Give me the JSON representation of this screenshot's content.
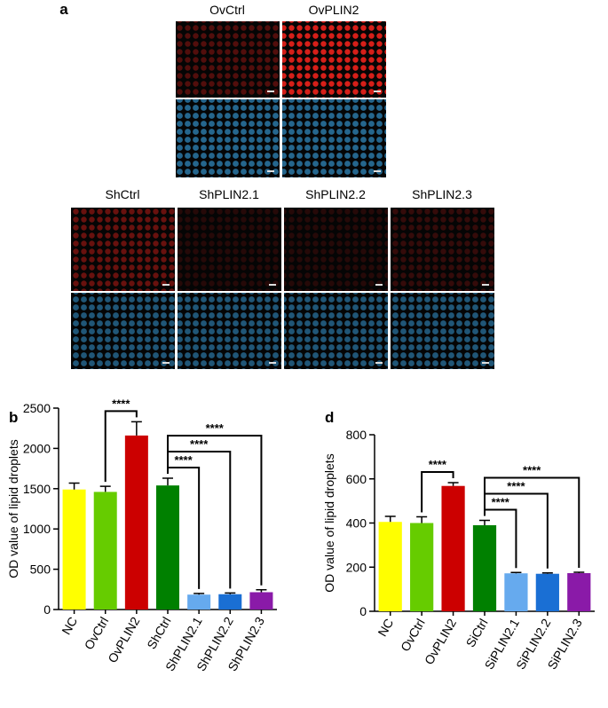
{
  "panel_a": {
    "label": "a",
    "top_columns": [
      "OvCtrl",
      "OvPLIN2"
    ],
    "bottom_columns": [
      "ShCtrl",
      "ShPLIN2.1",
      "ShPLIN2.2",
      "ShPLIN2.3"
    ]
  },
  "chart_data": [
    {
      "type": "bar",
      "label": "b",
      "y_label": "OD value of lipid droplets",
      "categories": [
        "NC",
        "OvCtrl",
        "OvPLIN2",
        "ShCtrl",
        "ShPLIN2.1",
        "ShPLIN2.2",
        "ShPLIN2.3"
      ],
      "values": [
        1490,
        1460,
        2160,
        1540,
        185,
        190,
        215
      ],
      "errors": [
        80,
        70,
        170,
        90,
        15,
        15,
        30
      ],
      "colors": [
        "#ffff00",
        "#66cc00",
        "#cc0000",
        "#008000",
        "#66aaee",
        "#1a6fd4",
        "#8a1aa8"
      ],
      "ylim": [
        0,
        2500
      ],
      "yticks": [
        0,
        500,
        1000,
        1500,
        2000,
        2500
      ],
      "annotations": [
        {
          "text": "****",
          "from": "OvCtrl",
          "to": "OvPLIN2"
        },
        {
          "text": "****",
          "from": "ShCtrl",
          "to": "ShPLIN2.1"
        },
        {
          "text": "****",
          "from": "ShCtrl",
          "to": "ShPLIN2.2"
        },
        {
          "text": "****",
          "from": "ShCtrl",
          "to": "ShPLIN2.3"
        }
      ]
    },
    {
      "type": "bar",
      "label": "d",
      "y_label": "OD value of lipid droplets",
      "categories": [
        "NC",
        "OvCtrl",
        "OvPLIN2",
        "SiCtrl",
        "SiPLIN2.1",
        "SiPLIN2.2",
        "SiPLIN2.3"
      ],
      "values": [
        405,
        400,
        568,
        390,
        172,
        170,
        173
      ],
      "errors": [
        25,
        28,
        15,
        22,
        4,
        4,
        4
      ],
      "colors": [
        "#ffff00",
        "#66cc00",
        "#cc0000",
        "#008000",
        "#66aaee",
        "#1a6fd4",
        "#8a1aa8"
      ],
      "ylim": [
        0,
        800
      ],
      "yticks": [
        0,
        200,
        400,
        600,
        800
      ],
      "annotations": [
        {
          "text": "****",
          "from": "OvCtrl",
          "to": "OvPLIN2"
        },
        {
          "text": "****",
          "from": "SiCtrl",
          "to": "SiPLIN2.1"
        },
        {
          "text": "****",
          "from": "SiCtrl",
          "to": "SiPLIN2.2"
        },
        {
          "text": "****",
          "from": "SiCtrl",
          "to": "SiPLIN2.3"
        }
      ]
    }
  ]
}
